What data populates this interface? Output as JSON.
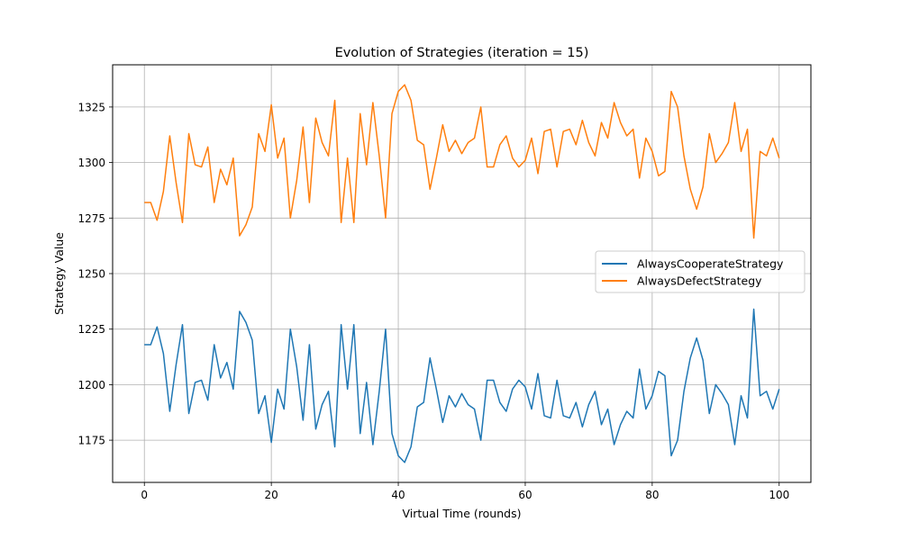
{
  "chart_data": {
    "type": "line",
    "title": "Evolution of Strategies (iteration = 15)",
    "xlabel": "Virtual Time (rounds)",
    "ylabel": "Strategy Value",
    "xlim": [
      -5,
      105
    ],
    "ylim": [
      1156,
      1344
    ],
    "xticks": [
      0,
      20,
      40,
      60,
      80,
      100
    ],
    "yticks": [
      1175,
      1200,
      1225,
      1250,
      1275,
      1300,
      1325
    ],
    "grid": true,
    "legend_position": "center-right",
    "series": [
      {
        "name": "AlwaysCooperateStrategy",
        "color": "#1f77b4",
        "values": [
          1218,
          1218,
          1226,
          1214,
          1188,
          1209,
          1227,
          1187,
          1201,
          1202,
          1193,
          1218,
          1203,
          1210,
          1198,
          1233,
          1228,
          1220,
          1187,
          1195,
          1174,
          1198,
          1189,
          1225,
          1208,
          1184,
          1218,
          1180,
          1191,
          1197,
          1172,
          1227,
          1198,
          1227,
          1178,
          1201,
          1173,
          1197,
          1225,
          1178,
          1168,
          1165,
          1172,
          1190,
          1192,
          1212,
          1198,
          1183,
          1195,
          1190,
          1196,
          1191,
          1189,
          1175,
          1202,
          1202,
          1192,
          1188,
          1198,
          1202,
          1199,
          1189,
          1205,
          1186,
          1185,
          1202,
          1186,
          1185,
          1192,
          1181,
          1191,
          1197,
          1182,
          1189,
          1173,
          1182,
          1188,
          1185,
          1207,
          1189,
          1195,
          1206,
          1204,
          1168,
          1175,
          1197,
          1212,
          1221,
          1211,
          1187,
          1200,
          1196,
          1191,
          1173,
          1195,
          1185,
          1234,
          1195,
          1197,
          1189,
          1198
        ]
      },
      {
        "name": "AlwaysDefectStrategy",
        "color": "#ff7f0e",
        "values": [
          1282,
          1282,
          1274,
          1287,
          1312,
          1291,
          1273,
          1313,
          1299,
          1298,
          1307,
          1282,
          1297,
          1290,
          1302,
          1267,
          1272,
          1280,
          1313,
          1305,
          1326,
          1302,
          1311,
          1275,
          1292,
          1316,
          1282,
          1320,
          1309,
          1303,
          1328,
          1273,
          1302,
          1273,
          1322,
          1299,
          1327,
          1303,
          1275,
          1322,
          1332,
          1335,
          1328,
          1310,
          1308,
          1288,
          1302,
          1317,
          1305,
          1310,
          1304,
          1309,
          1311,
          1325,
          1298,
          1298,
          1308,
          1312,
          1302,
          1298,
          1301,
          1311,
          1295,
          1314,
          1315,
          1298,
          1314,
          1315,
          1308,
          1319,
          1309,
          1303,
          1318,
          1311,
          1327,
          1318,
          1312,
          1315,
          1293,
          1311,
          1305,
          1294,
          1296,
          1332,
          1325,
          1303,
          1288,
          1279,
          1289,
          1313,
          1300,
          1304,
          1309,
          1327,
          1305,
          1315,
          1266,
          1305,
          1303,
          1311,
          1302
        ]
      }
    ]
  }
}
